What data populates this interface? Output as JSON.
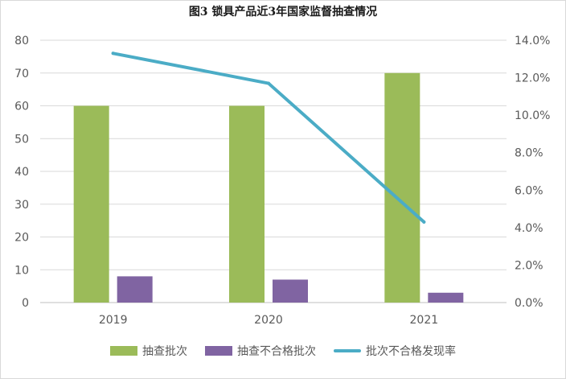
{
  "chart_data": {
    "type": "bar",
    "title": "图3  锁具产品近3年国家监督抽查情况",
    "categories": [
      "2019",
      "2020",
      "2021"
    ],
    "series": [
      {
        "name": "抽查批次",
        "type": "bar",
        "axis": "left",
        "values": [
          60,
          60,
          70
        ],
        "color": "#9bbb59"
      },
      {
        "name": "抽查不合格批次",
        "type": "bar",
        "axis": "left",
        "values": [
          8,
          7,
          3
        ],
        "color": "#8064a2"
      },
      {
        "name": "批次不合格发现率",
        "type": "line",
        "axis": "right",
        "values": [
          13.3,
          11.7,
          4.3
        ],
        "color": "#4bacc6"
      }
    ],
    "ylim_left": [
      0,
      80
    ],
    "yticks_left": [
      "0",
      "10",
      "20",
      "30",
      "40",
      "50",
      "60",
      "70",
      "80"
    ],
    "ylim_right": [
      0,
      14
    ],
    "yticks_right": [
      "0.0%",
      "2.0%",
      "4.0%",
      "6.0%",
      "8.0%",
      "10.0%",
      "12.0%",
      "14.0%"
    ],
    "grid": true,
    "legend_position": "bottom"
  }
}
